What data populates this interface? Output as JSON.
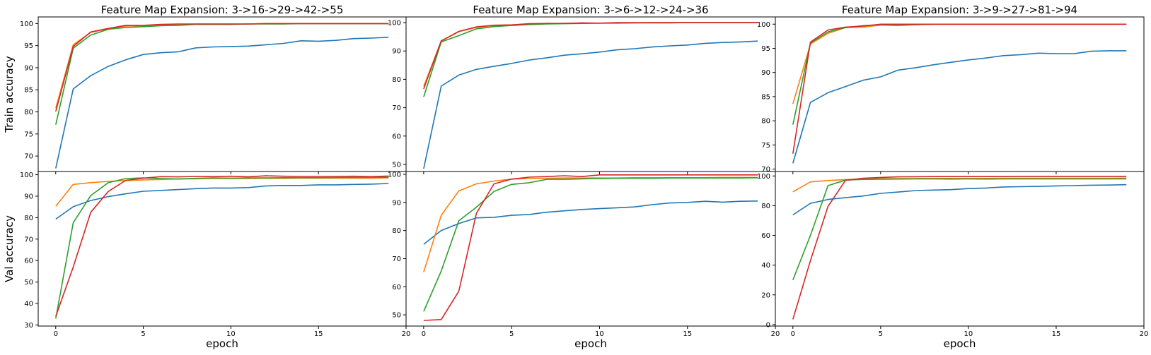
{
  "chart_data": {
    "type": "line",
    "xlabel": "epoch",
    "series_colors": [
      "#1f77b4",
      "#ff7f0e",
      "#2ca02c",
      "#d62728"
    ],
    "row_labels": [
      "Train accuracy",
      "Val accuracy"
    ],
    "x": [
      0,
      1,
      2,
      3,
      4,
      5,
      6,
      7,
      8,
      9,
      10,
      11,
      12,
      13,
      14,
      15,
      16,
      17,
      18,
      19
    ],
    "xlim": [
      -1,
      20
    ],
    "xticks": [
      0,
      5,
      10,
      15,
      20
    ],
    "panels": [
      {
        "title": "Feature Map Expansion: 3->16->29->42->55",
        "train": {
          "ylim": [
            66.5,
            101.5
          ],
          "yticks": [
            70,
            75,
            80,
            85,
            90,
            95,
            100
          ],
          "series": [
            {
              "values": [
                67.2,
                85.2,
                88.2,
                90.3,
                91.8,
                93.0,
                93.4,
                93.6,
                94.5,
                94.7,
                94.8,
                94.9,
                95.2,
                95.5,
                96.1,
                96.0,
                96.2,
                96.6,
                96.7,
                96.9
              ]
            },
            {
              "values": [
                80.8,
                95.2,
                98.0,
                98.8,
                99.4,
                99.5,
                99.7,
                99.8,
                99.9,
                99.9,
                99.9,
                99.9,
                100,
                100,
                100,
                100,
                100,
                100,
                100,
                100
              ]
            },
            {
              "values": [
                77.1,
                94.4,
                97.4,
                98.7,
                99.1,
                99.3,
                99.5,
                99.6,
                99.8,
                99.8,
                99.8,
                99.9,
                99.9,
                99.9,
                100,
                100,
                100,
                100,
                100,
                100
              ]
            },
            {
              "values": [
                80.1,
                94.8,
                98.1,
                98.9,
                99.6,
                99.6,
                99.8,
                99.9,
                99.9,
                99.9,
                99.9,
                99.9,
                100,
                100,
                100,
                100,
                100,
                100,
                100,
                100
              ]
            }
          ]
        },
        "val": {
          "ylim": [
            29.5,
            101.5
          ],
          "yticks": [
            30,
            40,
            50,
            60,
            70,
            80,
            90,
            100
          ],
          "series": [
            {
              "values": [
                79.3,
                85.1,
                88.0,
                89.8,
                91.1,
                92.3,
                92.7,
                93.1,
                93.5,
                93.8,
                93.8,
                94.0,
                94.8,
                95.0,
                95.0,
                95.3,
                95.3,
                95.5,
                95.6,
                95.9
              ]
            },
            {
              "values": [
                85.3,
                95.5,
                96.3,
                96.9,
                97.3,
                97.6,
                97.8,
                98.0,
                98.1,
                98.2,
                98.2,
                98.2,
                98.3,
                98.3,
                98.4,
                98.4,
                98.4,
                98.4,
                98.4,
                98.5
              ]
            },
            {
              "values": [
                33.0,
                77.6,
                90.3,
                96.3,
                98.2,
                98.5,
                98.2,
                98.0,
                98.3,
                98.5,
                98.4,
                98.5,
                98.5,
                98.6,
                98.6,
                98.6,
                98.7,
                98.7,
                98.8,
                98.8
              ]
            },
            {
              "values": [
                34.0,
                57.0,
                82.5,
                92.2,
                97.4,
                98.4,
                99.1,
                99.0,
                99.2,
                99.1,
                99.3,
                99.0,
                99.5,
                99.3,
                99.2,
                99.2,
                99.2,
                99.3,
                99.1,
                99.4
              ]
            }
          ]
        }
      },
      {
        "title": "Feature Map Expansion: 3->6->12->24->36",
        "train": {
          "ylim": [
            47.5,
            102.0
          ],
          "yticks": [
            50,
            60,
            70,
            80,
            90,
            100
          ],
          "series": [
            {
              "values": [
                48.5,
                77.6,
                81.5,
                83.5,
                84.6,
                85.6,
                86.8,
                87.6,
                88.5,
                89.0,
                89.6,
                90.4,
                90.8,
                91.4,
                91.8,
                92.1,
                92.7,
                93.0,
                93.2,
                93.5
              ]
            },
            {
              "values": [
                77.5,
                93.5,
                96.8,
                98.3,
                99.0,
                99.2,
                99.5,
                99.6,
                99.7,
                99.8,
                99.8,
                99.9,
                99.9,
                100,
                100,
                100,
                100,
                100,
                100,
                100
              ]
            },
            {
              "values": [
                73.8,
                93.2,
                95.4,
                97.8,
                98.6,
                99.0,
                99.3,
                99.5,
                99.6,
                99.7,
                99.8,
                99.8,
                99.9,
                99.9,
                99.9,
                100,
                100,
                100,
                100,
                100
              ]
            },
            {
              "values": [
                76.6,
                93.6,
                96.9,
                98.5,
                99.1,
                99.2,
                99.6,
                99.7,
                99.7,
                99.9,
                99.8,
                100,
                100,
                100,
                100,
                100,
                100,
                100,
                100,
                100
              ]
            }
          ]
        },
        "val": {
          "ylim": [
            46.0,
            101.0
          ],
          "yticks": [
            50,
            60,
            70,
            80,
            90,
            100
          ],
          "series": [
            {
              "values": [
                75.1,
                80.0,
                82.5,
                84.5,
                84.7,
                85.4,
                85.7,
                86.5,
                87.0,
                87.5,
                87.8,
                88.1,
                88.4,
                89.2,
                89.8,
                90.0,
                90.4,
                90.1,
                90.4,
                90.5
              ]
            },
            {
              "values": [
                65.2,
                85.4,
                94.1,
                96.6,
                97.6,
                98.3,
                98.5,
                98.6,
                98.7,
                98.7,
                98.7,
                98.7,
                98.8,
                98.8,
                98.8,
                98.8,
                98.8,
                98.9,
                98.9,
                98.9
              ]
            },
            {
              "values": [
                51.2,
                65.6,
                83.5,
                88.3,
                93.9,
                96.4,
                97.0,
                98.2,
                98.2,
                98.4,
                98.5,
                98.6,
                98.6,
                98.6,
                98.7,
                98.7,
                98.7,
                98.7,
                98.7,
                98.8
              ]
            },
            {
              "values": [
                48.0,
                48.3,
                58.4,
                86.1,
                96.6,
                98.3,
                99.0,
                99.2,
                99.5,
                99.2,
                99.8,
                99.8,
                99.8,
                99.8,
                99.8,
                99.8,
                99.8,
                99.8,
                99.8,
                99.8
              ]
            }
          ]
        }
      },
      {
        "title": "Feature Map Expansion: 3->9->27->81->94",
        "train": {
          "ylim": [
            69.5,
            101.5
          ],
          "yticks": [
            70,
            75,
            80,
            85,
            90,
            95,
            100
          ],
          "series": [
            {
              "values": [
                71.2,
                83.8,
                85.8,
                87.1,
                88.4,
                89.1,
                90.5,
                91.0,
                91.6,
                92.1,
                92.6,
                93.0,
                93.5,
                93.7,
                94.0,
                93.9,
                93.9,
                94.4,
                94.5,
                94.5
              ]
            },
            {
              "values": [
                83.5,
                95.9,
                98.1,
                99.3,
                99.4,
                99.8,
                99.7,
                99.9,
                100,
                100,
                100,
                100,
                100,
                100,
                100,
                100,
                100,
                100,
                100,
                100
              ]
            },
            {
              "values": [
                79.2,
                96.1,
                98.4,
                99.3,
                99.7,
                99.9,
                99.9,
                99.9,
                100,
                100,
                100,
                100,
                100,
                100,
                100,
                100,
                100,
                100,
                100,
                100
              ]
            },
            {
              "values": [
                73.2,
                96.3,
                98.8,
                99.4,
                99.6,
                100,
                100,
                100,
                100,
                100,
                100,
                100,
                100,
                100,
                100,
                100,
                100,
                100,
                100,
                100
              ]
            }
          ]
        },
        "val": {
          "ylim": [
            -1.0,
            103.0
          ],
          "yticks": [
            0,
            20,
            40,
            60,
            80,
            100
          ],
          "series": [
            {
              "values": [
                73.8,
                81.6,
                84.2,
                85.4,
                86.5,
                88.3,
                89.2,
                90.2,
                90.5,
                90.8,
                91.5,
                91.9,
                92.6,
                92.8,
                93.0,
                93.3,
                93.5,
                93.8,
                93.9,
                94.1
              ]
            },
            {
              "values": [
                89.3,
                96.0,
                96.9,
                97.6,
                98.0,
                98.2,
                98.2,
                98.3,
                98.4,
                98.4,
                98.4,
                98.4,
                98.5,
                98.5,
                98.5,
                98.5,
                98.5,
                98.5,
                98.5,
                98.6
              ]
            },
            {
              "values": [
                30.0,
                60.0,
                93.5,
                97.2,
                97.7,
                97.8,
                97.9,
                98.0,
                98.0,
                97.9,
                98.0,
                97.9,
                98.0,
                98.0,
                98.0,
                98.0,
                98.0,
                98.0,
                98.0,
                98.0
              ]
            },
            {
              "values": [
                3.5,
                43.0,
                79.5,
                97.0,
                98.5,
                99.0,
                99.4,
                99.5,
                99.6,
                99.6,
                99.6,
                99.6,
                99.6,
                99.7,
                99.7,
                99.7,
                99.7,
                99.7,
                99.7,
                99.7
              ]
            }
          ]
        }
      }
    ]
  }
}
